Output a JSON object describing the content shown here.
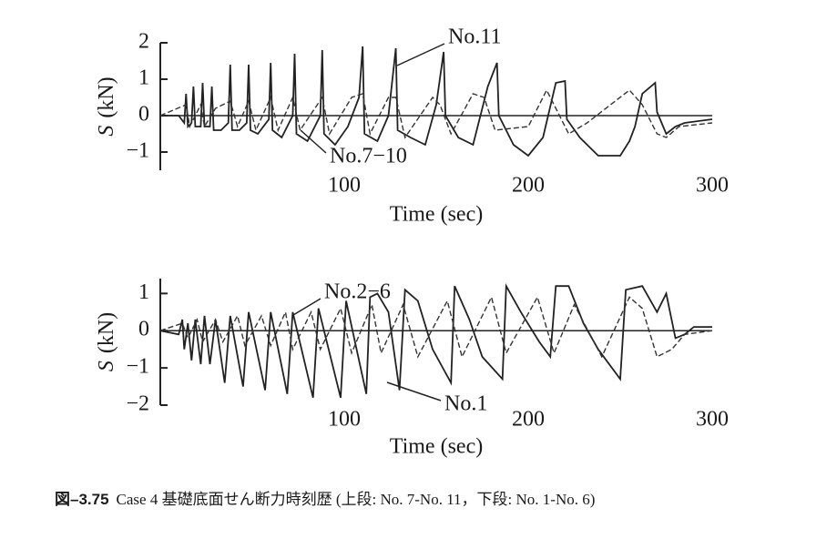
{
  "charts": [
    {
      "type": "line",
      "xlabel": "Time (sec)",
      "ylabel_symbol": "S",
      "ylabel_unit": "(kN)",
      "xlim": [
        0,
        300
      ],
      "xticks": [
        100,
        200,
        300
      ],
      "ylim": [
        -1.5,
        2
      ],
      "yticks": [
        {
          "value": -1,
          "label": "−1"
        },
        0,
        1,
        2
      ],
      "series": [
        {
          "name": "No.11",
          "color": "#222222",
          "dash": false,
          "x": [
            0,
            10,
            13,
            14,
            15,
            17,
            18,
            19,
            22,
            23,
            24,
            27,
            28,
            29,
            33,
            37,
            38,
            39,
            43,
            47,
            48,
            49,
            53,
            59,
            60,
            61,
            66,
            72,
            73,
            74,
            80,
            87,
            88,
            89,
            95,
            102,
            108,
            110,
            111,
            118,
            124,
            128,
            129,
            136,
            144,
            150,
            154,
            155,
            162,
            170,
            178,
            183,
            184,
            192,
            200,
            208,
            215,
            220,
            221,
            228,
            238,
            250,
            255,
            258,
            262,
            269,
            270,
            275,
            280,
            285,
            300
          ],
          "values": [
            0,
            0,
            -0.2,
            0.6,
            -0.3,
            -0.2,
            0.8,
            -0.3,
            -0.3,
            0.9,
            -0.3,
            -0.3,
            0.8,
            -0.4,
            -0.4,
            -0.2,
            1.4,
            -0.4,
            -0.4,
            -0.2,
            1.4,
            -0.4,
            -0.5,
            -0.1,
            1.45,
            -0.4,
            -0.6,
            0,
            1.7,
            -0.5,
            -0.7,
            0,
            1.8,
            -0.5,
            -0.8,
            -0.3,
            0.5,
            1.9,
            -0.5,
            -0.7,
            0,
            1.85,
            -0.4,
            -0.6,
            -0.8,
            0.3,
            1.75,
            0,
            -0.6,
            -0.8,
            0.8,
            1.45,
            0,
            -0.8,
            -1.1,
            -0.6,
            0.9,
            0.95,
            -0.1,
            -0.6,
            -1.1,
            -1.1,
            -0.7,
            -0.3,
            0.6,
            0.9,
            0.1,
            -0.5,
            -0.3,
            -0.2,
            -0.1
          ]
        },
        {
          "name": "No.7−10",
          "color": "#333333",
          "dash": true,
          "x": [
            0,
            14,
            16,
            22,
            24,
            30,
            38,
            42,
            48,
            52,
            60,
            64,
            72,
            76,
            88,
            92,
            104,
            110,
            114,
            124,
            128,
            133,
            148,
            152,
            158,
            170,
            176,
            182,
            200,
            210,
            215,
            222,
            232,
            255,
            262,
            270,
            275,
            282,
            300
          ],
          "values": [
            0,
            0.3,
            -0.3,
            0.3,
            -0.3,
            0.2,
            0.4,
            -0.3,
            0.4,
            -0.4,
            0.5,
            -0.4,
            0.5,
            -0.4,
            0.5,
            -0.5,
            0.5,
            0.6,
            -0.5,
            0.5,
            0.5,
            -0.6,
            0.5,
            0.3,
            -0.5,
            0.6,
            0.5,
            -0.4,
            -0.3,
            0.7,
            0.2,
            -0.5,
            -0.2,
            0.7,
            0.3,
            -0.5,
            -0.6,
            -0.3,
            -0.2
          ]
        }
      ]
    },
    {
      "type": "line",
      "xlabel": "Time (sec)",
      "ylabel_symbol": "S",
      "ylabel_unit": "(kN)",
      "xlim": [
        0,
        300
      ],
      "xticks": [
        100,
        200,
        300
      ],
      "ylim": [
        -2,
        1.4
      ],
      "yticks": [
        {
          "value": -2,
          "label": "−2"
        },
        {
          "value": -1,
          "label": "−1"
        },
        0,
        1
      ],
      "series": [
        {
          "name": "No.1",
          "color": "#222222",
          "dash": false,
          "x": [
            0,
            10,
            12,
            13,
            15,
            17,
            19,
            22,
            24,
            27,
            30,
            35,
            38,
            45,
            48,
            57,
            60,
            69,
            72,
            83,
            86,
            98,
            101,
            112,
            114,
            118,
            124,
            130,
            133,
            140,
            148,
            158,
            160,
            168,
            175,
            186,
            188,
            196,
            206,
            212,
            215,
            222,
            230,
            238,
            250,
            253,
            262,
            270,
            275,
            280,
            285,
            290,
            300
          ],
          "values": [
            0,
            -0.1,
            0.3,
            -0.5,
            0.2,
            -0.8,
            0.3,
            -0.9,
            0.4,
            -0.9,
            0.3,
            -1.4,
            0.4,
            -1.5,
            0.5,
            -1.6,
            0.5,
            -1.7,
            0.5,
            -1.8,
            0.6,
            -1.8,
            0.8,
            -1.7,
            0.9,
            1.0,
            0.5,
            -1.6,
            1.1,
            0.8,
            -0.5,
            -1.4,
            1.2,
            0.3,
            -0.7,
            -1.3,
            1.2,
            0.5,
            -0.3,
            -0.7,
            1.2,
            1.2,
            0.2,
            -0.5,
            -1.3,
            1.1,
            1.2,
            0.5,
            1.0,
            -0.2,
            -0.1,
            0.1,
            0.1
          ]
        },
        {
          "name": "No.2−6",
          "color": "#333333",
          "dash": true,
          "x": [
            0,
            12,
            15,
            20,
            23,
            30,
            34,
            42,
            46,
            55,
            60,
            68,
            72,
            82,
            87,
            98,
            104,
            115,
            120,
            132,
            140,
            156,
            164,
            180,
            188,
            205,
            214,
            225,
            240,
            255,
            262,
            270,
            278,
            285,
            300
          ],
          "values": [
            0,
            0.2,
            -0.2,
            0.3,
            -0.3,
            0.3,
            -0.3,
            0.4,
            -0.4,
            0.4,
            -0.4,
            0.5,
            -0.5,
            0.5,
            -0.5,
            0.6,
            -0.6,
            0.7,
            -0.6,
            0.7,
            -0.7,
            0.8,
            -0.7,
            0.9,
            -0.6,
            0.9,
            -0.6,
            0.7,
            -0.7,
            0.9,
            0.6,
            -0.7,
            -0.5,
            -0.1,
            0
          ]
        }
      ]
    }
  ],
  "caption": {
    "number": "図–3.75",
    "text": "Case 4 基礎底面せん断力時刻歴 (上段: No. 7-No. 11，下段: No. 1-No. 6)"
  }
}
